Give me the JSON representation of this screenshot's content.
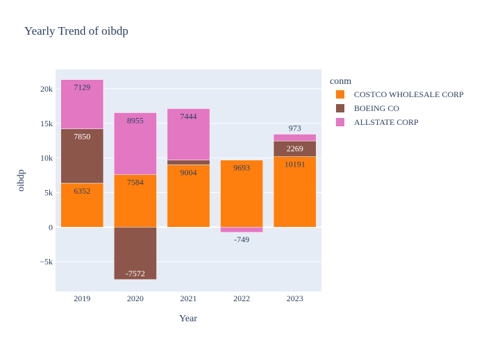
{
  "chart_data": {
    "type": "bar",
    "barmode": "relative",
    "title": "Yearly Trend of oibdp",
    "xlabel": "Year",
    "ylabel": "oibdp",
    "categories": [
      "2019",
      "2020",
      "2021",
      "2022",
      "2023"
    ],
    "ylim": [
      -9300,
      22800
    ],
    "yticks": [
      -5000,
      0,
      5000,
      10000,
      15000,
      20000
    ],
    "ytick_labels": [
      "−5k",
      "0",
      "5k",
      "10k",
      "15k",
      "20k"
    ],
    "grid": true,
    "legend_title": "conm",
    "legend_position": "right",
    "series": [
      {
        "name": "COSTCO WHOLESALE CORP",
        "color": "#ff7f0e",
        "values": [
          6352,
          7584,
          9004,
          9693,
          10191
        ],
        "labels": [
          "6352",
          "7584",
          "9004",
          "9693",
          "10191"
        ]
      },
      {
        "name": "BOEING CO",
        "color": "#8c564b",
        "values": [
          7850,
          -7572,
          685,
          null,
          2269
        ],
        "labels": [
          "7850",
          "-7572",
          "",
          "",
          "2269"
        ]
      },
      {
        "name": "ALLSTATE CORP",
        "color": "#e377c2",
        "values": [
          7129,
          8955,
          7444,
          -749,
          973
        ],
        "labels": [
          "7129",
          "8955",
          "7444",
          "-749",
          "973"
        ]
      }
    ]
  }
}
